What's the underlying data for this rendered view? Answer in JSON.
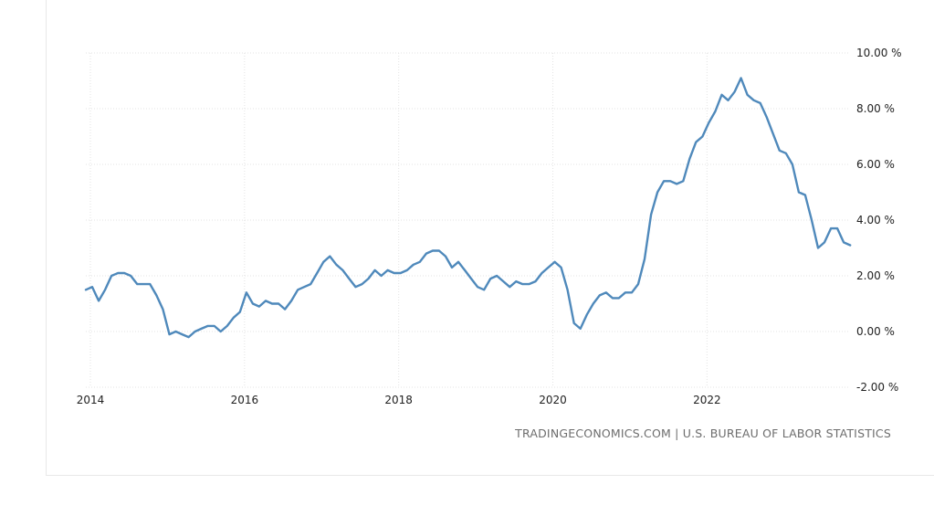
{
  "source_text": "TRADINGECONOMICS.COM | U.S. BUREAU OF LABOR STATISTICS",
  "colors": {
    "line": "#4f89bb",
    "grid": "#e3e3e3",
    "axis_text": "#222222",
    "source_text": "#6d6d6d"
  },
  "chart_data": {
    "type": "line",
    "x_tick_labels": [
      "2014",
      "2016",
      "2018",
      "2020",
      "2022"
    ],
    "y_tick_labels": [
      "10.00 %",
      "8.00 %",
      "6.00 %",
      "4.00 %",
      "2.00 %",
      "0.00 %",
      "-2.00 %"
    ],
    "y_ticks": [
      10,
      8,
      6,
      4,
      2,
      0,
      -2
    ],
    "x_ticks": [
      2014,
      2016,
      2018,
      2020,
      2022
    ],
    "ylim": [
      -2,
      10
    ],
    "grid": true,
    "series": [
      {
        "start": "2013-12",
        "frequency": "monthly",
        "values": [
          1.5,
          1.6,
          1.1,
          1.5,
          2.0,
          2.1,
          2.1,
          2.0,
          1.7,
          1.7,
          1.7,
          1.3,
          0.8,
          -0.1,
          0.0,
          -0.1,
          -0.2,
          0.0,
          0.1,
          0.2,
          0.2,
          0.0,
          0.2,
          0.5,
          0.7,
          1.4,
          1.0,
          0.9,
          1.1,
          1.0,
          1.0,
          0.8,
          1.1,
          1.5,
          1.6,
          1.7,
          2.1,
          2.5,
          2.7,
          2.4,
          2.2,
          1.9,
          1.6,
          1.7,
          1.9,
          2.2,
          2.0,
          2.2,
          2.1,
          2.1,
          2.2,
          2.4,
          2.5,
          2.8,
          2.9,
          2.9,
          2.7,
          2.3,
          2.5,
          2.2,
          1.9,
          1.6,
          1.5,
          1.9,
          2.0,
          1.8,
          1.6,
          1.8,
          1.7,
          1.7,
          1.8,
          2.1,
          2.3,
          2.5,
          2.3,
          1.5,
          0.3,
          0.1,
          0.6,
          1.0,
          1.3,
          1.4,
          1.2,
          1.2,
          1.4,
          1.4,
          1.7,
          2.6,
          4.2,
          5.0,
          5.4,
          5.4,
          5.3,
          5.4,
          6.2,
          6.8,
          7.0,
          7.5,
          7.9,
          8.5,
          8.3,
          8.6,
          9.1,
          8.5,
          8.3,
          8.2,
          7.7,
          7.1,
          6.5,
          6.4,
          6.0,
          5.0,
          4.9,
          4.0,
          3.0,
          3.2,
          3.7,
          3.7,
          3.2,
          3.1
        ]
      }
    ]
  }
}
